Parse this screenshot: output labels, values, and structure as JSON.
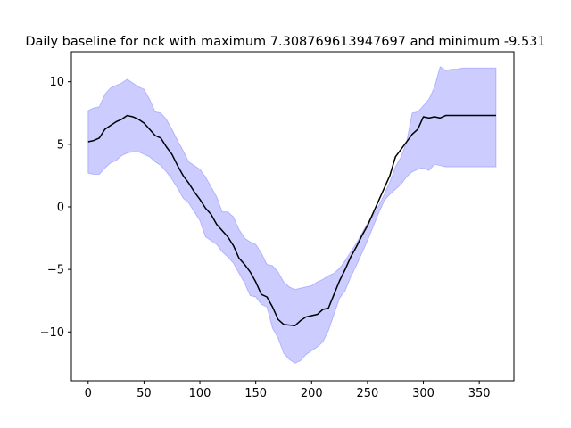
{
  "chart_data": {
    "type": "area",
    "title": "Daily baseline for nck with maximum 7.308769613947697 and minimum -9.531",
    "xlabel": "",
    "ylabel": "",
    "xlim": [
      -15,
      381
    ],
    "ylim": [
      -13.9,
      12.4
    ],
    "x_ticks": [
      0,
      50,
      100,
      150,
      200,
      250,
      300,
      350
    ],
    "y_ticks": [
      -10,
      -5,
      0,
      5,
      10
    ],
    "grid": false,
    "colors": {
      "band": "#0000ff",
      "mean": "#000000"
    },
    "series": [
      {
        "kind": "line",
        "x": [
          0,
          5,
          10,
          15,
          20,
          25,
          30,
          35,
          40,
          45,
          50,
          55,
          60,
          65,
          70,
          75,
          80,
          85,
          90,
          95,
          100,
          105,
          110,
          115,
          120,
          125,
          130,
          135,
          140,
          145,
          150,
          155,
          160,
          165,
          170,
          175,
          180,
          185,
          190,
          195,
          200,
          205,
          210,
          215,
          220,
          225,
          230,
          235,
          240,
          245,
          250,
          255,
          260,
          265,
          270,
          275,
          280,
          285,
          290,
          295,
          300,
          305,
          310,
          315,
          320,
          325,
          330,
          335,
          340,
          345,
          350,
          355,
          360,
          365
        ],
        "values": [
          5.2,
          5.3,
          5.5,
          6.2,
          6.5,
          6.8,
          7.0,
          7.3,
          7.2,
          7.0,
          6.7,
          6.2,
          5.7,
          5.5,
          4.8,
          4.2,
          3.3,
          2.5,
          1.9,
          1.2,
          0.6,
          -0.1,
          -0.6,
          -1.4,
          -1.9,
          -2.4,
          -3.1,
          -4.1,
          -4.6,
          -5.2,
          -6.0,
          -7.0,
          -7.2,
          -8.0,
          -9.0,
          -9.4,
          -9.45,
          -9.5,
          -9.1,
          -8.8,
          -8.7,
          -8.6,
          -8.2,
          -8.1,
          -7.0,
          -5.9,
          -5.0,
          -4.0,
          -3.2,
          -2.3,
          -1.5,
          -0.5,
          0.5,
          1.5,
          2.5,
          4.0,
          4.6,
          5.2,
          5.8,
          6.2,
          7.2,
          7.1,
          7.2,
          7.1,
          7.3,
          7.3,
          7.3,
          7.3,
          7.3,
          7.3,
          7.3,
          7.3,
          7.3,
          7.3
        ]
      },
      {
        "kind": "band",
        "x": [
          0,
          5,
          10,
          15,
          20,
          25,
          30,
          35,
          40,
          45,
          50,
          55,
          60,
          65,
          70,
          75,
          80,
          85,
          90,
          95,
          100,
          105,
          110,
          115,
          120,
          125,
          130,
          135,
          140,
          145,
          150,
          155,
          160,
          165,
          170,
          175,
          180,
          185,
          190,
          195,
          200,
          205,
          210,
          215,
          220,
          225,
          230,
          235,
          240,
          245,
          250,
          255,
          260,
          265,
          270,
          275,
          280,
          285,
          290,
          295,
          300,
          305,
          310,
          315,
          320,
          325,
          330,
          335,
          340,
          345,
          350,
          355,
          360,
          365
        ],
        "upper": [
          7.7,
          7.9,
          8.0,
          9.0,
          9.5,
          9.7,
          9.9,
          10.2,
          9.9,
          9.6,
          9.4,
          8.6,
          7.6,
          7.5,
          7.0,
          6.2,
          5.3,
          4.5,
          3.6,
          3.3,
          3.0,
          2.4,
          1.6,
          0.8,
          -0.4,
          -0.4,
          -0.8,
          -1.8,
          -2.5,
          -2.8,
          -3.0,
          -3.7,
          -4.6,
          -4.7,
          -5.2,
          -6.0,
          -6.4,
          -6.6,
          -6.5,
          -6.4,
          -6.3,
          -6.0,
          -5.8,
          -5.5,
          -5.3,
          -4.9,
          -4.3,
          -3.6,
          -2.9,
          -2.1,
          -1.3,
          -0.7,
          0.1,
          1.0,
          2.0,
          3.2,
          4.0,
          5.2,
          7.5,
          7.6,
          8.1,
          8.6,
          9.6,
          11.2,
          10.9,
          11.0,
          11.0,
          11.1,
          11.1,
          11.1,
          11.1,
          11.1,
          11.1,
          11.1
        ],
        "lower": [
          2.7,
          2.6,
          2.6,
          3.1,
          3.5,
          3.7,
          4.1,
          4.3,
          4.4,
          4.4,
          4.2,
          4.0,
          3.6,
          3.3,
          2.8,
          2.2,
          1.5,
          0.7,
          0.3,
          -0.4,
          -1.1,
          -2.4,
          -2.7,
          -3.0,
          -3.6,
          -4.0,
          -4.5,
          -5.3,
          -6.1,
          -7.1,
          -7.2,
          -7.8,
          -8.0,
          -9.7,
          -10.5,
          -11.7,
          -12.2,
          -12.5,
          -12.3,
          -11.8,
          -11.5,
          -11.2,
          -10.8,
          -9.9,
          -8.6,
          -7.3,
          -6.7,
          -5.6,
          -4.7,
          -3.7,
          -2.7,
          -1.6,
          -0.5,
          0.5,
          1.0,
          1.4,
          1.8,
          2.4,
          2.8,
          3.0,
          3.1,
          2.9,
          3.4,
          3.3,
          3.2,
          3.2,
          3.2,
          3.2,
          3.2,
          3.2,
          3.2,
          3.2,
          3.2,
          3.2
        ]
      }
    ]
  }
}
